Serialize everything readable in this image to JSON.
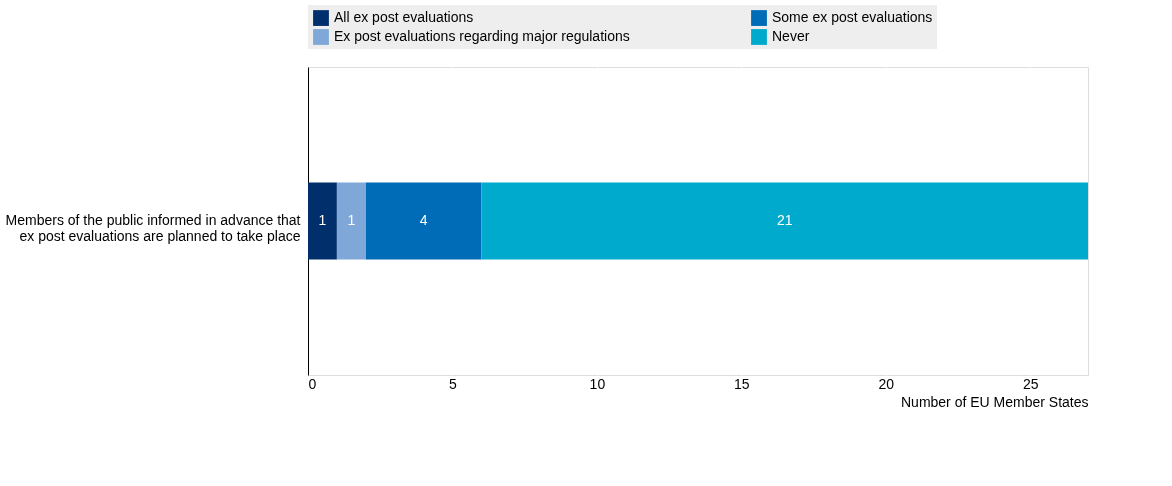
{
  "chart_data": {
    "type": "bar",
    "orientation": "horizontal",
    "stacked": true,
    "categories": [
      "Members of the public informed in advance that ex post evaluations are planned to take place"
    ],
    "series": [
      {
        "name": "All ex post evaluations",
        "color": "#002f6c",
        "values": [
          1
        ]
      },
      {
        "name": "Ex post evaluations regarding major regulations",
        "color": "#7fa8d9",
        "values": [
          1
        ]
      },
      {
        "name": "Some ex post evaluations",
        "color": "#006bb6",
        "values": [
          4
        ]
      },
      {
        "name": "Never",
        "color": "#00aacc",
        "values": [
          21
        ]
      }
    ],
    "xlabel": "Number of EU Member States",
    "xlim": [
      0,
      27
    ],
    "xticks": [
      0,
      5,
      10,
      15,
      20,
      25
    ],
    "grid": "x",
    "legend": "top",
    "data_labels": true
  }
}
